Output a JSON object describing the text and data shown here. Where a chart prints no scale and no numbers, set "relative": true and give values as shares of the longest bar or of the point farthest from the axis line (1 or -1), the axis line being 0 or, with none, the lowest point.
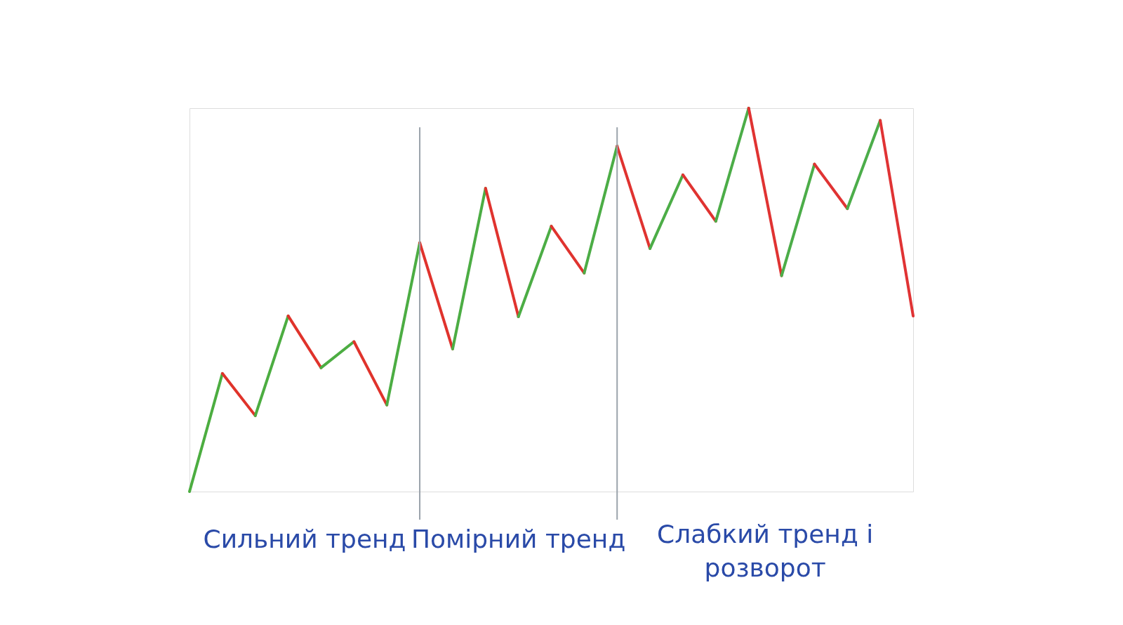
{
  "chart_data": {
    "type": "line",
    "relative": true,
    "categories": [
      null,
      null,
      null,
      null,
      null,
      null,
      null,
      null,
      null,
      null,
      null,
      null,
      null,
      null,
      null,
      null,
      null,
      null,
      null,
      null,
      null,
      null,
      null
    ],
    "series": [
      {
        "color": "#4cad40",
        "values": [
          0,
          0.308,
          null,
          null,
          null,
          null,
          null,
          null,
          null,
          null,
          null,
          null,
          null,
          null,
          null,
          null,
          null,
          null,
          null,
          null,
          null,
          null,
          null
        ]
      },
      {
        "color": "#e0332a",
        "values": [
          null,
          0.308,
          0.198,
          null,
          null,
          null,
          null,
          null,
          null,
          null,
          null,
          null,
          null,
          null,
          null,
          null,
          null,
          null,
          null,
          null,
          null,
          null,
          null
        ]
      },
      {
        "color": "#4cad41",
        "values": [
          null,
          null,
          0.198,
          0.458,
          null,
          null,
          null,
          null,
          null,
          null,
          null,
          null,
          null,
          null,
          null,
          null,
          null,
          null,
          null,
          null,
          null,
          null,
          null
        ]
      },
      {
        "color": "#e0332b",
        "values": [
          null,
          null,
          null,
          0.458,
          0.323,
          null,
          null,
          null,
          null,
          null,
          null,
          null,
          null,
          null,
          null,
          null,
          null,
          null,
          null,
          null,
          null,
          null,
          null
        ]
      },
      {
        "color": "#4cad42",
        "values": [
          null,
          null,
          null,
          null,
          0.323,
          0.391,
          null,
          null,
          null,
          null,
          null,
          null,
          null,
          null,
          null,
          null,
          null,
          null,
          null,
          null,
          null,
          null,
          null
        ]
      },
      {
        "color": "#e0332c",
        "values": [
          null,
          null,
          null,
          null,
          null,
          0.391,
          0.226,
          null,
          null,
          null,
          null,
          null,
          null,
          null,
          null,
          null,
          null,
          null,
          null,
          null,
          null,
          null,
          null
        ]
      },
      {
        "color": "#4cad43",
        "values": [
          null,
          null,
          null,
          null,
          null,
          null,
          0.226,
          0.649,
          null,
          null,
          null,
          null,
          null,
          null,
          null,
          null,
          null,
          null,
          null,
          null,
          null,
          null,
          null
        ]
      },
      {
        "color": "#e0332d",
        "values": [
          null,
          null,
          null,
          null,
          null,
          null,
          null,
          0.649,
          0.372,
          null,
          null,
          null,
          null,
          null,
          null,
          null,
          null,
          null,
          null,
          null,
          null,
          null,
          null
        ]
      },
      {
        "color": "#4cad44",
        "values": [
          null,
          null,
          null,
          null,
          null,
          null,
          null,
          null,
          0.372,
          0.791,
          null,
          null,
          null,
          null,
          null,
          null,
          null,
          null,
          null,
          null,
          null,
          null,
          null
        ]
      },
      {
        "color": "#e0332e",
        "values": [
          null,
          null,
          null,
          null,
          null,
          null,
          null,
          null,
          null,
          0.791,
          0.456,
          null,
          null,
          null,
          null,
          null,
          null,
          null,
          null,
          null,
          null,
          null,
          null
        ]
      },
      {
        "color": "#4cad45",
        "values": [
          null,
          null,
          null,
          null,
          null,
          null,
          null,
          null,
          null,
          null,
          0.456,
          0.692,
          null,
          null,
          null,
          null,
          null,
          null,
          null,
          null,
          null,
          null,
          null
        ]
      },
      {
        "color": "#e0332f",
        "values": [
          null,
          null,
          null,
          null,
          null,
          null,
          null,
          null,
          null,
          null,
          null,
          0.692,
          0.57,
          null,
          null,
          null,
          null,
          null,
          null,
          null,
          null,
          null,
          null
        ]
      },
      {
        "color": "#4cad46",
        "values": [
          null,
          null,
          null,
          null,
          null,
          null,
          null,
          null,
          null,
          null,
          null,
          null,
          0.57,
          0.901,
          null,
          null,
          null,
          null,
          null,
          null,
          null,
          null,
          null
        ]
      },
      {
        "color": "#e03330",
        "values": [
          null,
          null,
          null,
          null,
          null,
          null,
          null,
          null,
          null,
          null,
          null,
          null,
          null,
          0.901,
          0.634,
          null,
          null,
          null,
          null,
          null,
          null,
          null,
          null
        ]
      },
      {
        "color": "#4cad47",
        "values": [
          null,
          null,
          null,
          null,
          null,
          null,
          null,
          null,
          null,
          null,
          null,
          null,
          null,
          null,
          0.634,
          0.826,
          null,
          null,
          null,
          null,
          null,
          null,
          null
        ]
      },
      {
        "color": "#e03331",
        "values": [
          null,
          null,
          null,
          null,
          null,
          null,
          null,
          null,
          null,
          null,
          null,
          null,
          null,
          null,
          null,
          0.826,
          0.705,
          null,
          null,
          null,
          null,
          null,
          null
        ]
      },
      {
        "color": "#4cad48",
        "values": [
          null,
          null,
          null,
          null,
          null,
          null,
          null,
          null,
          null,
          null,
          null,
          null,
          null,
          null,
          null,
          null,
          0.705,
          1,
          null,
          null,
          null,
          null,
          null
        ]
      },
      {
        "color": "#e03332",
        "values": [
          null,
          null,
          null,
          null,
          null,
          null,
          null,
          null,
          null,
          null,
          null,
          null,
          null,
          null,
          null,
          null,
          null,
          1,
          0.563,
          null,
          null,
          null,
          null
        ]
      },
      {
        "color": "#4cad49",
        "values": [
          null,
          null,
          null,
          null,
          null,
          null,
          null,
          null,
          null,
          null,
          null,
          null,
          null,
          null,
          null,
          null,
          null,
          null,
          0.563,
          0.854,
          null,
          null,
          null
        ]
      },
      {
        "color": "#e03333",
        "values": [
          null,
          null,
          null,
          null,
          null,
          null,
          null,
          null,
          null,
          null,
          null,
          null,
          null,
          null,
          null,
          null,
          null,
          null,
          null,
          0.854,
          0.738,
          null,
          null
        ]
      },
      {
        "color": "#4cad4a",
        "values": [
          null,
          null,
          null,
          null,
          null,
          null,
          null,
          null,
          null,
          null,
          null,
          null,
          null,
          null,
          null,
          null,
          null,
          null,
          null,
          null,
          0.738,
          0.968,
          null
        ]
      },
      {
        "color": "#e03334",
        "values": [
          null,
          null,
          null,
          null,
          null,
          null,
          null,
          null,
          null,
          null,
          null,
          null,
          null,
          null,
          null,
          null,
          null,
          null,
          null,
          null,
          null,
          0.968,
          0.458
        ]
      }
    ],
    "annotations": [
      "Сильний тренд",
      "Помірний тренд",
      "Слабкий тренд і розворот"
    ]
  }
}
